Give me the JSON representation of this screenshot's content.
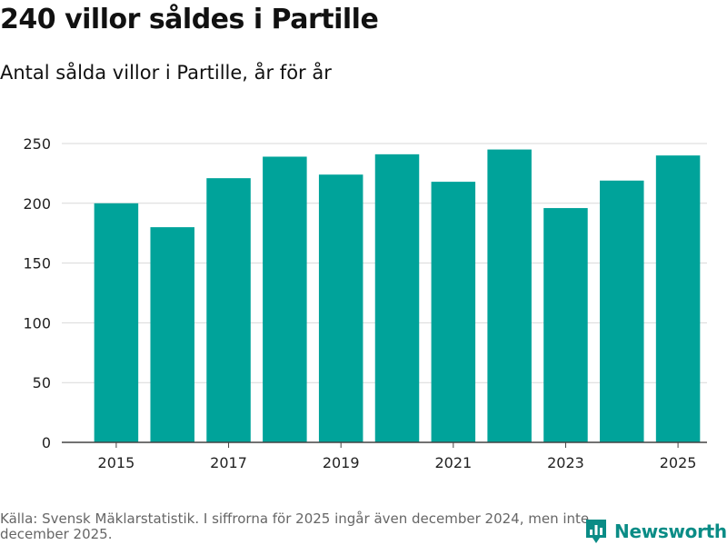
{
  "header": {
    "title": "240 villor såldes i Partille",
    "subtitle": "Antal sålda villor i Partille, år för år"
  },
  "chart_data": {
    "type": "bar",
    "categories": [
      "2015",
      "2016",
      "2017",
      "2018",
      "2019",
      "2020",
      "2021",
      "2022",
      "2023",
      "2024",
      "2025"
    ],
    "values": [
      200,
      180,
      221,
      239,
      224,
      241,
      218,
      245,
      196,
      219,
      240
    ],
    "x_tick_labels": [
      "2015",
      "2017",
      "2019",
      "2021",
      "2023",
      "2025"
    ],
    "y_ticks": [
      0,
      50,
      100,
      150,
      200,
      250
    ],
    "ylim": [
      0,
      260
    ],
    "grid": true,
    "bar_color": "#00a39a",
    "grid_color": "#d9d9d9",
    "title": "",
    "xlabel": "",
    "ylabel": ""
  },
  "footer": {
    "source": "Källa: Svensk Mäklarstatistik. I siffrorna för 2025 ingår även december 2024, men inte december 2025.",
    "brand_name": "Newsworthy",
    "brand_color": "#0a8c86"
  }
}
